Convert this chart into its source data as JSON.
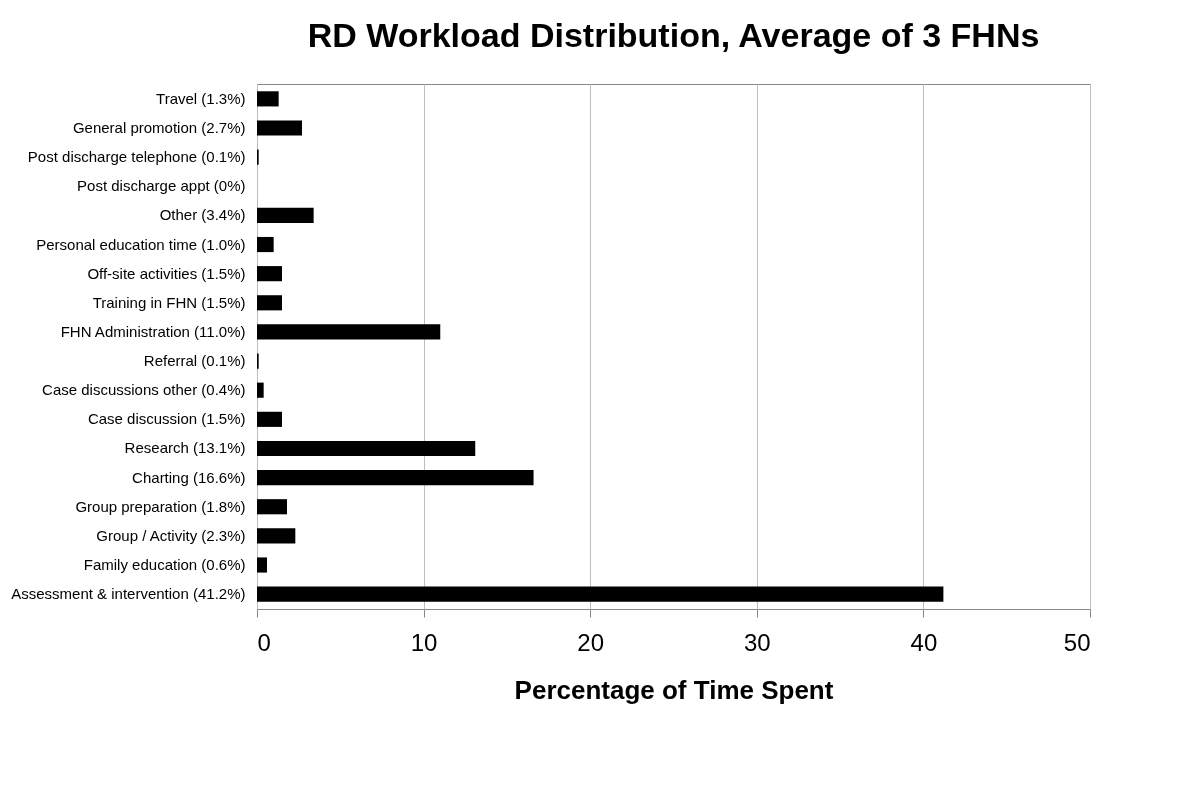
{
  "chart_data": {
    "type": "bar",
    "orientation": "horizontal",
    "title": "RD Workload Distribution, Average of 3 FHNs",
    "xlabel": "Percentage of Time Spent",
    "categories": [
      "Travel (1.3%)",
      "General promotion (2.7%)",
      "Post discharge telephone (0.1%)",
      "Post discharge appt (0%)",
      "Other (3.4%)",
      "Personal education time (1.0%)",
      "Off-site activities (1.5%)",
      "Training in FHN (1.5%)",
      "FHN Administration (11.0%)",
      "Referral (0.1%)",
      "Case discussions other (0.4%)",
      "Case discussion (1.5%)",
      "Research (13.1%)",
      "Charting (16.6%)",
      "Group preparation (1.8%)",
      "Group / Activity (2.3%)",
      "Family education (0.6%)",
      "Assessment & intervention (41.2%)"
    ],
    "values": [
      1.3,
      2.7,
      0.1,
      0,
      3.4,
      1.0,
      1.5,
      1.5,
      11.0,
      0.1,
      0.4,
      1.5,
      13.1,
      16.6,
      1.8,
      2.3,
      0.6,
      41.2
    ],
    "color": "#000000",
    "xlim": [
      0,
      50
    ],
    "xticks": [
      0,
      10,
      20,
      30,
      40,
      50
    ],
    "grid": "x"
  }
}
